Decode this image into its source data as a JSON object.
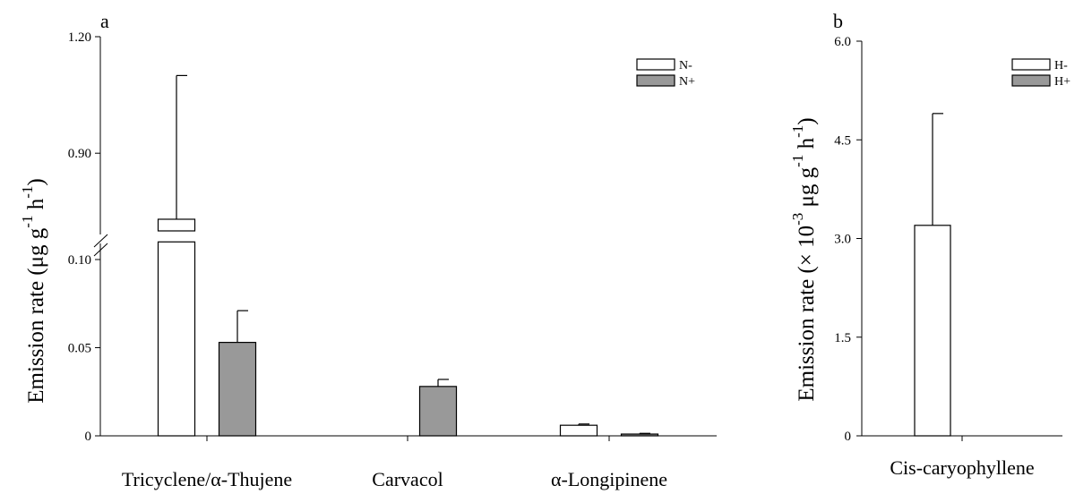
{
  "chart_data": [
    {
      "type": "bar",
      "panel_label": "a",
      "ylabel": "Emission rate (μg g⁻¹ h⁻¹)",
      "categories": [
        "Tricyclene/α-Thujene",
        "Carvacol",
        "α-Longipinene"
      ],
      "y_axis_break": {
        "lower_range": [
          0,
          0.1
        ],
        "upper_range": [
          0.7,
          1.2
        ]
      },
      "yticks": [
        "0",
        "0.05",
        "0.10",
        "0.90",
        "1.20"
      ],
      "ytick_values": [
        0,
        0.05,
        0.1,
        0.9,
        1.2
      ],
      "series": [
        {
          "name": "N-",
          "color": "#ffffff",
          "values": [
            0.73,
            0,
            0.006
          ],
          "errors": [
            0.37,
            0,
            0.0007
          ]
        },
        {
          "name": "N+",
          "color": "#999999",
          "values": [
            0.053,
            0.028,
            0.001
          ],
          "errors": [
            0.018,
            0.004,
            0.0004
          ]
        }
      ],
      "legend": "top-right"
    },
    {
      "type": "bar",
      "panel_label": "b",
      "ylabel": "Emission rate (× 10⁻³ μg g⁻¹ h⁻¹)",
      "categories": [
        "Cis-caryophyllene"
      ],
      "ylim": [
        0,
        6.0
      ],
      "yticks": [
        "0",
        "1.5",
        "3.0",
        "4.5",
        "6.0"
      ],
      "ytick_values": [
        0,
        1.5,
        3.0,
        4.5,
        6.0
      ],
      "series": [
        {
          "name": "H-",
          "color": "#ffffff",
          "values": [
            3.2
          ],
          "errors": [
            1.7
          ]
        },
        {
          "name": "H+",
          "color": "#999999",
          "values": [
            0
          ],
          "errors": [
            0
          ]
        }
      ],
      "legend": "top-right"
    }
  ]
}
